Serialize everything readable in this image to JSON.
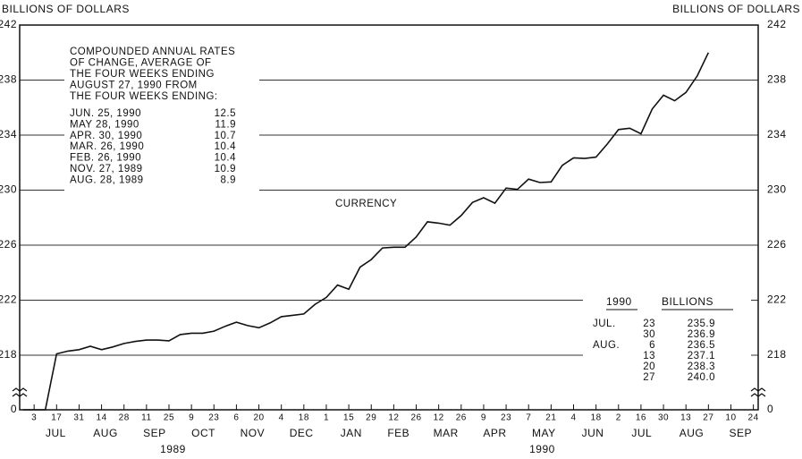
{
  "chart_data": {
    "type": "line",
    "ylabel": "BILLIONS OF DOLLARS",
    "y2label": "BILLIONS OF DOLLARS",
    "series_label": "CURRENCY",
    "color": "#111111",
    "grid": true,
    "x": [
      "1989-06-26",
      "1989-07-03",
      "1989-07-10",
      "1989-07-17",
      "1989-07-24",
      "1989-07-31",
      "1989-08-07",
      "1989-08-14",
      "1989-08-21",
      "1989-08-28",
      "1989-09-04",
      "1989-09-11",
      "1989-09-18",
      "1989-09-25",
      "1989-10-02",
      "1989-10-09",
      "1989-10-16",
      "1989-10-23",
      "1989-10-30",
      "1989-11-06",
      "1989-11-13",
      "1989-11-20",
      "1989-11-27",
      "1989-12-04",
      "1989-12-11",
      "1989-12-18",
      "1989-12-25",
      "1990-01-01",
      "1990-01-08",
      "1990-01-15",
      "1990-01-22",
      "1990-01-29",
      "1990-02-05",
      "1990-02-12",
      "1990-02-19",
      "1990-02-26",
      "1990-03-05",
      "1990-03-12",
      "1990-03-19",
      "1990-03-26",
      "1990-04-02",
      "1990-04-09",
      "1990-04-16",
      "1990-04-23",
      "1990-04-30",
      "1990-05-07",
      "1990-05-14",
      "1990-05-21",
      "1990-05-28",
      "1990-06-04",
      "1990-06-11",
      "1990-06-18",
      "1990-06-25",
      "1990-07-02",
      "1990-07-09",
      "1990-07-16",
      "1990-07-23",
      "1990-07-30",
      "1990-08-06",
      "1990-08-13",
      "1990-08-20",
      "1990-08-27"
    ],
    "values": [
      217.35,
      217.4,
      217.8,
      218.1,
      218.3,
      218.4,
      218.65,
      218.4,
      218.6,
      218.85,
      219.0,
      219.1,
      219.1,
      219.05,
      219.5,
      219.6,
      219.6,
      219.75,
      220.1,
      220.4,
      220.15,
      220.0,
      220.35,
      220.8,
      220.9,
      221.0,
      221.7,
      222.2,
      223.1,
      222.8,
      224.4,
      224.95,
      225.8,
      225.85,
      225.85,
      226.6,
      227.7,
      227.6,
      227.45,
      228.15,
      229.1,
      229.45,
      229.05,
      230.15,
      230.05,
      230.8,
      230.55,
      230.6,
      231.8,
      232.35,
      232.3,
      232.4,
      233.35,
      234.4,
      234.5,
      234.1,
      235.9,
      236.9,
      236.5,
      237.1,
      238.3,
      240.0
    ],
    "xlim": [
      "1989-06-24",
      "1990-09-27"
    ],
    "xticks": [
      {
        "value": "1989-07-03",
        "label": "3"
      },
      {
        "value": "1989-07-17",
        "label": "17"
      },
      {
        "value": "1989-07-31",
        "label": "31"
      },
      {
        "value": "1989-08-14",
        "label": "14"
      },
      {
        "value": "1989-08-28",
        "label": "28"
      },
      {
        "value": "1989-09-11",
        "label": "11"
      },
      {
        "value": "1989-09-25",
        "label": "25"
      },
      {
        "value": "1989-10-09",
        "label": "9"
      },
      {
        "value": "1989-10-23",
        "label": "23"
      },
      {
        "value": "1989-11-06",
        "label": "6"
      },
      {
        "value": "1989-11-20",
        "label": "20"
      },
      {
        "value": "1989-12-04",
        "label": "4"
      },
      {
        "value": "1989-12-18",
        "label": "18"
      },
      {
        "value": "1990-01-01",
        "label": "1"
      },
      {
        "value": "1990-01-15",
        "label": "15"
      },
      {
        "value": "1990-01-29",
        "label": "29"
      },
      {
        "value": "1990-02-12",
        "label": "12"
      },
      {
        "value": "1990-02-26",
        "label": "26"
      },
      {
        "value": "1990-03-12",
        "label": "12"
      },
      {
        "value": "1990-03-26",
        "label": "26"
      },
      {
        "value": "1990-04-09",
        "label": "9"
      },
      {
        "value": "1990-04-23",
        "label": "23"
      },
      {
        "value": "1990-05-07",
        "label": "7"
      },
      {
        "value": "1990-05-21",
        "label": "21"
      },
      {
        "value": "1990-06-04",
        "label": "4"
      },
      {
        "value": "1990-06-18",
        "label": "18"
      },
      {
        "value": "1990-07-02",
        "label": "2"
      },
      {
        "value": "1990-07-16",
        "label": "16"
      },
      {
        "value": "1990-07-30",
        "label": "30"
      },
      {
        "value": "1990-08-13",
        "label": "13"
      },
      {
        "value": "1990-08-27",
        "label": "27"
      },
      {
        "value": "1990-09-10",
        "label": "10"
      },
      {
        "value": "1990-09-24",
        "label": "24"
      }
    ],
    "month_labels": [
      {
        "value": "1989-07",
        "label": "JUL"
      },
      {
        "value": "1989-08",
        "label": "AUG"
      },
      {
        "value": "1989-09",
        "label": "SEP"
      },
      {
        "value": "1989-10",
        "label": "OCT"
      },
      {
        "value": "1989-11",
        "label": "NOV"
      },
      {
        "value": "1989-12",
        "label": "DEC"
      },
      {
        "value": "1990-01",
        "label": "JAN"
      },
      {
        "value": "1990-02",
        "label": "FEB"
      },
      {
        "value": "1990-03",
        "label": "MAR"
      },
      {
        "value": "1990-04",
        "label": "APR"
      },
      {
        "value": "1990-05",
        "label": "MAY"
      },
      {
        "value": "1990-06",
        "label": "JUN"
      },
      {
        "value": "1990-07",
        "label": "JUL"
      },
      {
        "value": "1990-08",
        "label": "AUG"
      },
      {
        "value": "1990-09",
        "label": "SEP"
      }
    ],
    "years": [
      1989,
      1990
    ],
    "ylim": [
      0,
      242
    ],
    "axis_break": [
      0,
      218
    ],
    "yticks": [
      0,
      218,
      222,
      226,
      230,
      234,
      238,
      242
    ],
    "rates_note": [
      "COMPOUNDED ANNUAL RATES",
      "OF CHANGE, AVERAGE OF",
      "THE FOUR WEEKS ENDING",
      "AUGUST 27, 1990 FROM",
      "THE FOUR WEEKS ENDING:"
    ],
    "rates": [
      [
        "JUN. 25, 1990",
        12.5
      ],
      [
        "MAY 28, 1990",
        11.9
      ],
      [
        "APR. 30, 1990",
        10.7
      ],
      [
        "MAR. 26, 1990",
        10.4
      ],
      [
        "FEB. 26, 1990",
        10.4
      ],
      [
        "NOV. 27, 1989",
        10.9
      ],
      [
        "AUG. 28, 1989",
        8.9
      ]
    ],
    "table": {
      "header": [
        "1990",
        "BILLIONS"
      ],
      "rows": [
        [
          "JUL.",
          "23",
          "235.9"
        ],
        [
          "",
          "30",
          "236.9"
        ],
        [
          "AUG.",
          "6",
          "236.5"
        ],
        [
          "",
          "13",
          "237.1"
        ],
        [
          "",
          "20",
          "238.3"
        ],
        [
          "",
          "27",
          "240.0"
        ]
      ]
    }
  }
}
